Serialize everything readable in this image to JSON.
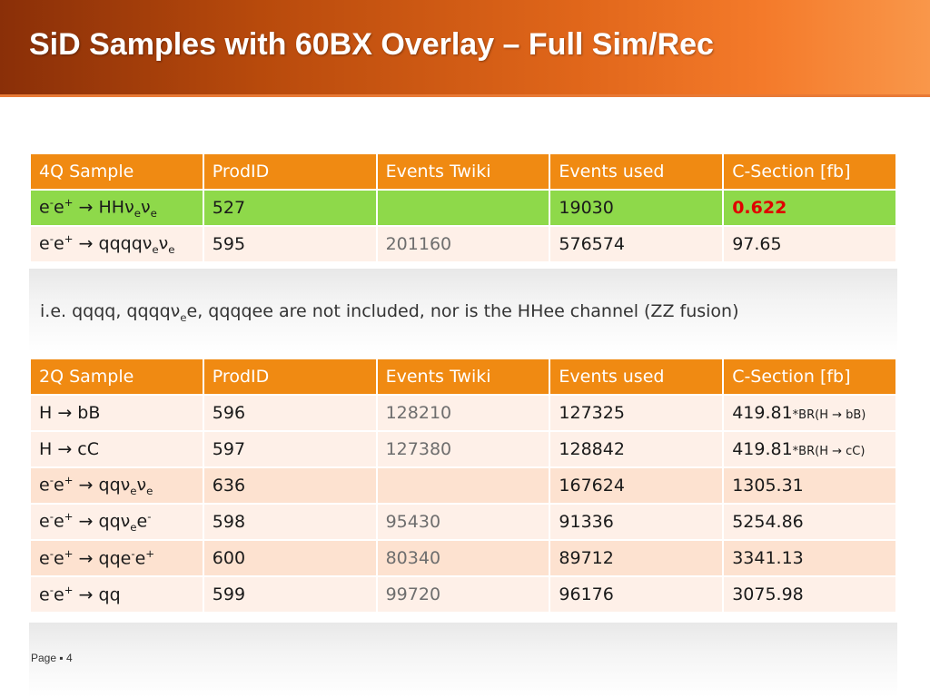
{
  "title": "SiD Samples with 60BX Overlay – Full Sim/Rec",
  "table4q": {
    "headers": [
      "4Q Sample",
      "ProdID",
      "Events Twiki",
      "Events used",
      "C-Section [fb]"
    ],
    "rows": [
      {
        "sample": {
          "p1": "e",
          "s1": "-",
          "p2": "e",
          "s2": "+",
          "p3": " → HHν",
          "s3": "e",
          "p4": "ν",
          "s4": "e"
        },
        "prodid": "527",
        "twiki": "",
        "used": "19030",
        "xsec": "0.622"
      },
      {
        "sample": {
          "p1": "e",
          "s1": "-",
          "p2": "e",
          "s2": "+",
          "p3": " → qqqqν",
          "s3": "e",
          "p4": "ν",
          "s4": "e"
        },
        "prodid": "595",
        "twiki": "201160",
        "used": "576574",
        "xsec": "97.65"
      }
    ]
  },
  "note": {
    "p1": "i.e. qqqq, qqqqν",
    "s1": "e",
    "p2": "e, qqqqee are not included, nor is the HHee channel (ZZ fusion)"
  },
  "table2q": {
    "headers": [
      "2Q Sample",
      "ProdID",
      "Events Twiki",
      "Events used",
      "C-Section [fb]"
    ],
    "rows": [
      {
        "sample": "H → bB",
        "prodid": "596",
        "twiki": "128210",
        "used": "127325",
        "xsec": "419.81",
        "xsec_note": "*BR(H → bB)"
      },
      {
        "sample": "H → cC",
        "prodid": "597",
        "twiki": "127380",
        "used": "128842",
        "xsec": "419.81",
        "xsec_note": "*BR(H → cC)"
      },
      {
        "sample": {
          "p1": "e",
          "s1": "-",
          "p2": "e",
          "s2": "+",
          "p3": " → qqν",
          "s3": "e",
          "p4": "ν",
          "s4": "e"
        },
        "prodid": "636",
        "twiki": "",
        "used": "167624",
        "xsec": "1305.31"
      },
      {
        "sample": {
          "p1": "e",
          "s1": "-",
          "p2": "e",
          "s2": "+",
          "p3": " → qqν",
          "s3": "e",
          "p4": "e",
          "s4": "-"
        },
        "prodid": "598",
        "twiki": "95430",
        "used": "91336",
        "xsec": "5254.86"
      },
      {
        "sample": {
          "p1": "e",
          "s1": "-",
          "p2": "e",
          "s2": "+",
          "p3": " → qqe",
          "s3": "-",
          "p4": "e",
          "s4": "+"
        },
        "prodid": "600",
        "twiki": "80340",
        "used": "89712",
        "xsec": "3341.13"
      },
      {
        "sample": {
          "p1": "e",
          "s1": "-",
          "p2": "e",
          "s2": "+",
          "p3": " → qq"
        },
        "prodid": "599",
        "twiki": "99720",
        "used": "96176",
        "xsec": "3075.98"
      }
    ]
  },
  "footer": "Page ▪ 4",
  "colors": {
    "header_orange": "#f08a12",
    "highlight_green": "#8ed94a",
    "highlight_red": "#e00000"
  }
}
